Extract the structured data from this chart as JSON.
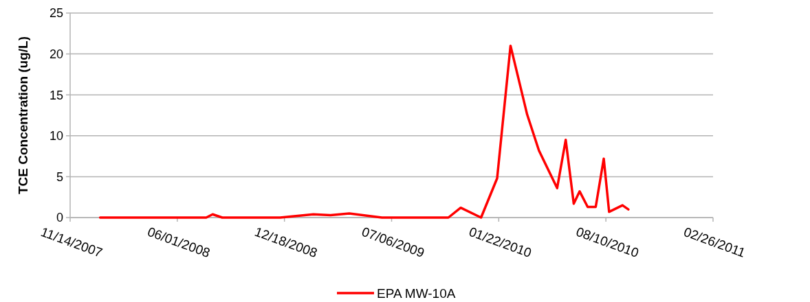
{
  "chart_data": {
    "type": "line",
    "ylabel": "TCE Concentration (ug/L)",
    "xlim": [
      "2007-11-14",
      "2011-02-26"
    ],
    "xticks": [
      {
        "value": "2007-11-14",
        "label": "11/14/2007"
      },
      {
        "value": "2008-06-01",
        "label": "06/01/2008"
      },
      {
        "value": "2008-12-18",
        "label": "12/18/2008"
      },
      {
        "value": "2009-07-06",
        "label": "07/06/2009"
      },
      {
        "value": "2010-01-22",
        "label": "01/22/2010"
      },
      {
        "value": "2010-08-10",
        "label": "08/10/2010"
      },
      {
        "value": "2011-02-26",
        "label": "02/26/2011"
      }
    ],
    "ylim": [
      0,
      25
    ],
    "yticks": [
      0,
      5,
      10,
      15,
      20,
      25
    ],
    "grid": "y",
    "legend": "bottom",
    "marker": "none",
    "line_style": "solid",
    "x": [
      "2008-01-09",
      "2008-07-25",
      "2008-08-06",
      "2008-08-24",
      "2008-12-10",
      "2009-02-10",
      "2009-03-14",
      "2009-04-18",
      "2009-06-18",
      "2009-10-20",
      "2009-11-12",
      "2009-12-20",
      "2010-01-19",
      "2010-02-13",
      "2010-03-16",
      "2010-04-07",
      "2010-05-11",
      "2010-05-27",
      "2010-06-11",
      "2010-06-22",
      "2010-07-07",
      "2010-07-22",
      "2010-08-06",
      "2010-08-16",
      "2010-09-10",
      "2010-09-21"
    ],
    "series": [
      {
        "name": "EPA MW-10A",
        "color": "#ff0000",
        "values": [
          0,
          0,
          0.4,
          0,
          0,
          0.4,
          0.3,
          0.5,
          0,
          0,
          1.2,
          0,
          4.8,
          21,
          12.6,
          8.2,
          3.6,
          9.5,
          1.7,
          3.2,
          1.3,
          1.3,
          7.2,
          0.7,
          1.5,
          1.0
        ]
      }
    ]
  }
}
